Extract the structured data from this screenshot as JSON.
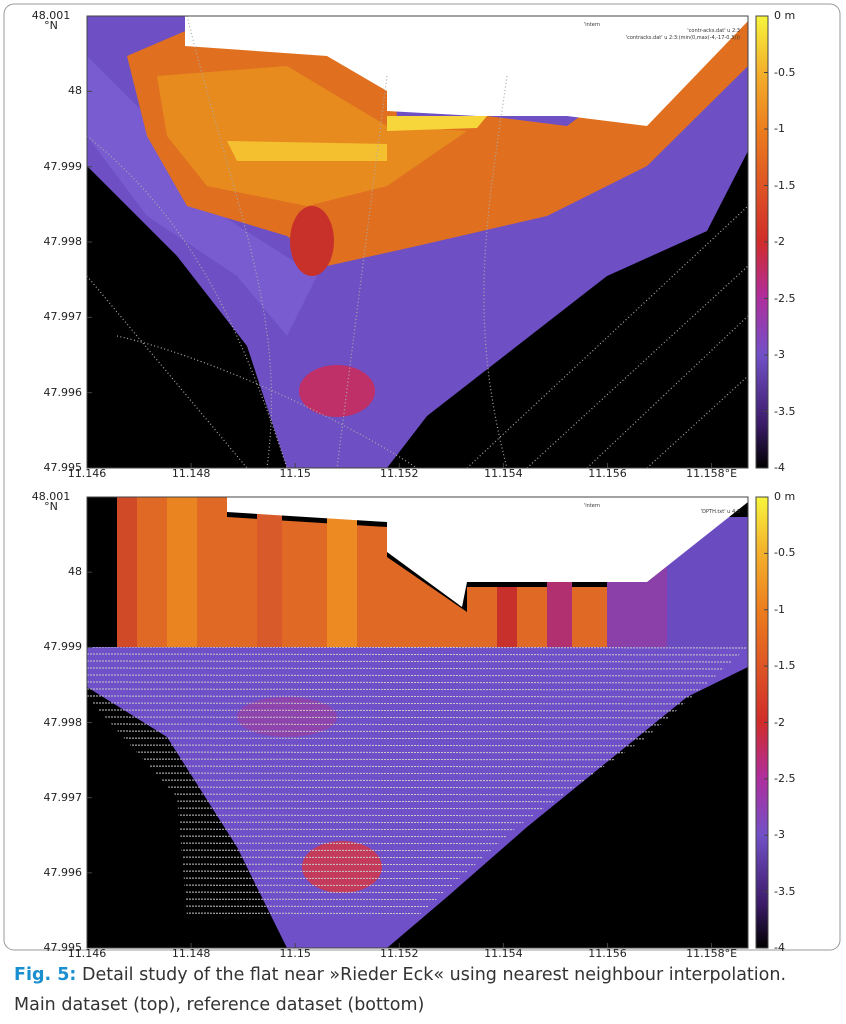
{
  "figure": {
    "panels": [
      {
        "xlim": [
          11.146,
          11.1587
        ],
        "ylim": [
          47.995,
          48.001
        ],
        "clim": [
          -4,
          0
        ],
        "xticks": [
          11.146,
          11.148,
          11.15,
          11.152,
          11.154,
          11.156,
          {
            "value": 11.158,
            "label": "11.158°E"
          }
        ],
        "yticks": [
          47.995,
          47.996,
          47.997,
          47.998,
          47.999,
          48,
          {
            "value": 48.001,
            "label": "48.001\n°N"
          }
        ],
        "cticks": [
          {
            "value": 0,
            "label": "0 m"
          },
          -0.5,
          -1,
          -1.5,
          -2,
          -2.5,
          -3,
          -3.5,
          -4
        ],
        "legend": [
          "'intern",
          "'contr-acks.dat' u 2:3",
          "'contracks.dat' u 2:3:(min(0,max(-4,-17-0.3)))"
        ]
      },
      {
        "xlim": [
          11.146,
          11.1587
        ],
        "ylim": [
          47.995,
          48.001
        ],
        "clim": [
          -4,
          0
        ],
        "xticks": [
          11.146,
          11.148,
          11.15,
          11.152,
          11.154,
          11.156,
          {
            "value": 11.158,
            "label": "11.158°E"
          }
        ],
        "yticks": [
          47.995,
          47.996,
          47.997,
          47.998,
          47.999,
          48,
          {
            "value": 48.001,
            "label": "48.001\n°N"
          }
        ],
        "cticks": [
          {
            "value": 0,
            "label": "0 m"
          },
          -0.5,
          -1,
          -1.5,
          -2,
          -2.5,
          -3,
          -3.5,
          -4
        ],
        "legend": [
          "'intern",
          "'DPTH.txt' u 4:3"
        ]
      }
    ],
    "caption": {
      "label": "Fig. 5:",
      "lines": [
        "Detail study of the flat near »Rieder Eck« using nearest neighbour interpolation.",
        "Main dataset (top), reference dataset (bottom)"
      ]
    }
  }
}
